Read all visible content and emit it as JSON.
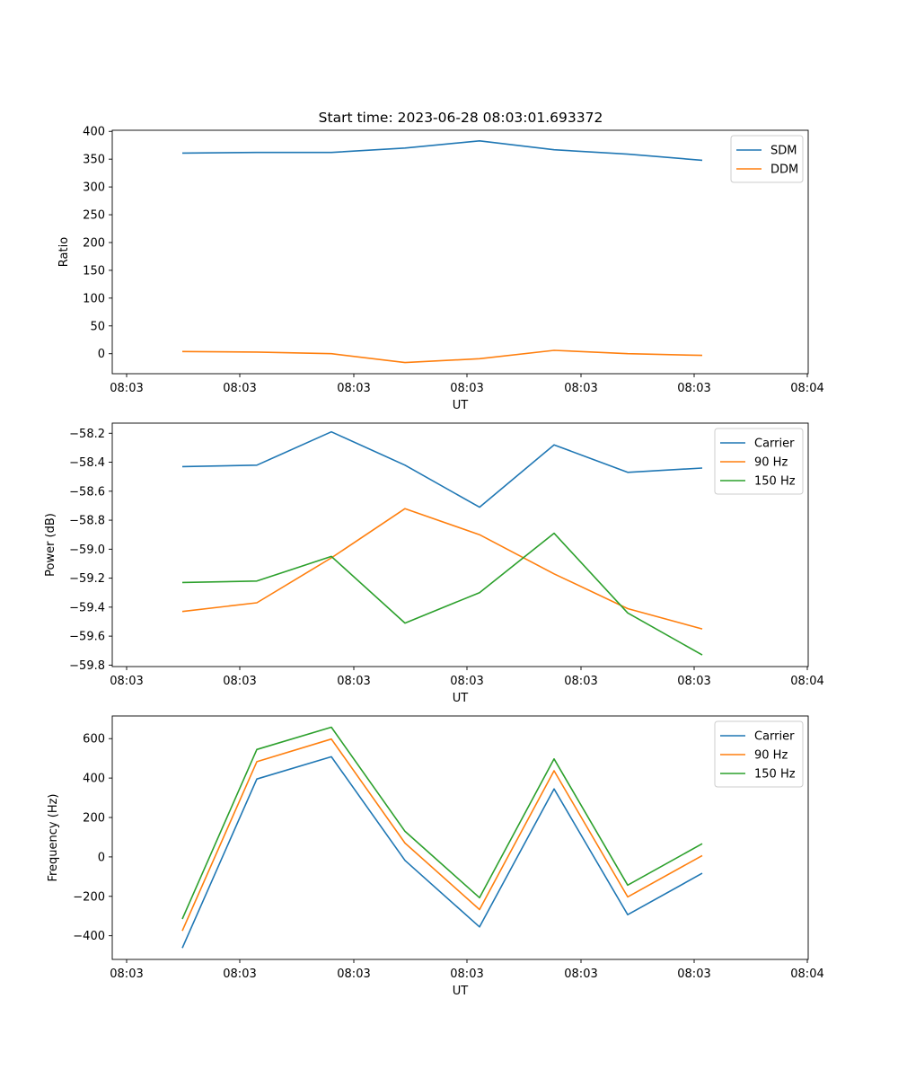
{
  "title": "Start time: 2023-06-28 08:03:01.693372",
  "chart_data": [
    {
      "type": "line",
      "xlabel": "UT",
      "ylabel": "Ratio",
      "x_tick_labels": [
        "08:03",
        "08:03",
        "08:03",
        "08:03",
        "08:03",
        "08:03",
        "08:04"
      ],
      "y_ticks": [
        0,
        50,
        100,
        150,
        200,
        250,
        300,
        350,
        400
      ],
      "ylim": [
        -36,
        402
      ],
      "legend_position": "upper right",
      "series": [
        {
          "name": "SDM",
          "color": "#1f77b4",
          "values": [
            361,
            362,
            362,
            370,
            383,
            367,
            359,
            348
          ]
        },
        {
          "name": "DDM",
          "color": "#ff7f0e",
          "values": [
            4,
            3,
            0,
            -16,
            -9,
            6,
            0,
            -3
          ]
        }
      ]
    },
    {
      "type": "line",
      "xlabel": "UT",
      "ylabel": "Power (dB)",
      "x_tick_labels": [
        "08:03",
        "08:03",
        "08:03",
        "08:03",
        "08:03",
        "08:03",
        "08:04"
      ],
      "y_ticks": [
        -58.2,
        -58.4,
        -58.6,
        -58.8,
        -59.0,
        -59.2,
        -59.4,
        -59.6,
        -59.8
      ],
      "y_tick_labels": [
        "−58.2",
        "−58.4",
        "−58.6",
        "−58.8",
        "−59.0",
        "−59.2",
        "−59.4",
        "−59.6",
        "−59.8"
      ],
      "ylim": [
        -59.81,
        -58.13
      ],
      "legend_position": "upper right",
      "series": [
        {
          "name": "Carrier",
          "color": "#1f77b4",
          "values": [
            -58.43,
            -58.42,
            -58.19,
            -58.42,
            -58.71,
            -58.28,
            -58.47,
            -58.44
          ]
        },
        {
          "name": "90 Hz",
          "color": "#ff7f0e",
          "values": [
            -59.43,
            -59.37,
            -59.06,
            -58.72,
            -58.9,
            -59.17,
            -59.41,
            -59.55
          ]
        },
        {
          "name": "150 Hz",
          "color": "#2ca02c",
          "values": [
            -59.23,
            -59.22,
            -59.05,
            -59.51,
            -59.3,
            -58.89,
            -59.44,
            -59.73
          ]
        }
      ]
    },
    {
      "type": "line",
      "xlabel": "UT",
      "ylabel": "Frequency (Hz)",
      "x_tick_labels": [
        "08:03",
        "08:03",
        "08:03",
        "08:03",
        "08:03",
        "08:03",
        "08:04"
      ],
      "y_ticks": [
        -400,
        -200,
        0,
        200,
        400,
        600
      ],
      "y_tick_labels": [
        "−400",
        "−200",
        "0",
        "200",
        "400",
        "600"
      ],
      "ylim": [
        -520,
        715
      ],
      "legend_position": "upper right",
      "series": [
        {
          "name": "Carrier",
          "color": "#1f77b4",
          "values": [
            -462,
            395,
            508,
            -18,
            -355,
            345,
            -293,
            -83
          ]
        },
        {
          "name": "90 Hz",
          "color": "#ff7f0e",
          "values": [
            -375,
            483,
            598,
            70,
            -267,
            437,
            -203,
            7
          ]
        },
        {
          "name": "150 Hz",
          "color": "#2ca02c",
          "values": [
            -315,
            545,
            658,
            130,
            -207,
            497,
            -143,
            67
          ]
        }
      ]
    }
  ]
}
